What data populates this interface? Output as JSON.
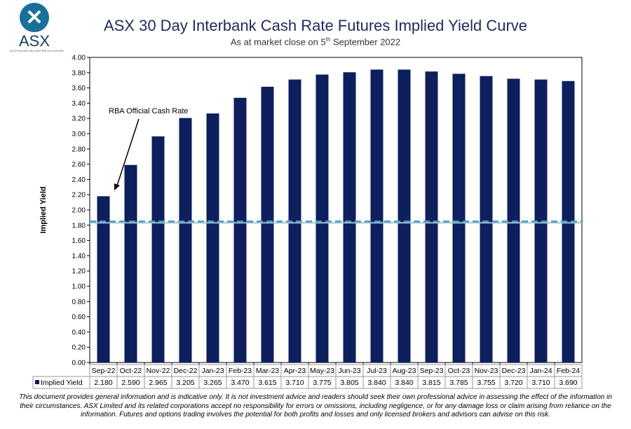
{
  "logo": {
    "name": "ASX",
    "sub": "AUSTRALIAN SECURITIES EXCHANGE"
  },
  "chart_data": {
    "type": "bar",
    "title": "ASX 30 Day Interbank Cash Rate Futures Implied Yield Curve",
    "subtitle_pre": "As at market close on 5",
    "subtitle_sup": "th",
    "subtitle_post": " September 2022",
    "ylabel": "Implied Yield",
    "ylim": [
      0,
      4
    ],
    "yticks": [
      "0.00",
      "0.20",
      "0.40",
      "0.60",
      "0.80",
      "1.00",
      "1.20",
      "1.40",
      "1.60",
      "1.80",
      "2.00",
      "2.20",
      "2.40",
      "2.60",
      "2.80",
      "3.00",
      "3.20",
      "3.40",
      "3.60",
      "3.80",
      "4.00"
    ],
    "categories": [
      "Sep-22",
      "Oct-22",
      "Nov-22",
      "Dec-22",
      "Jan-23",
      "Feb-23",
      "Mar-23",
      "Apr-23",
      "May-23",
      "Jun-23",
      "Jul-23",
      "Aug-23",
      "Sep-23",
      "Oct-23",
      "Nov-23",
      "Dec-23",
      "Jan-24",
      "Feb-24"
    ],
    "series": [
      {
        "name": "Implied Yield",
        "color": "#0d1f5c",
        "values_text": [
          "2.180",
          "2.590",
          "2.965",
          "3.205",
          "3.265",
          "3.470",
          "3.615",
          "3.710",
          "3.775",
          "3.805",
          "3.840",
          "3.840",
          "3.815",
          "3.785",
          "3.755",
          "3.720",
          "3.710",
          "3.690"
        ],
        "values": [
          2.18,
          2.59,
          2.965,
          3.205,
          3.265,
          3.47,
          3.615,
          3.71,
          3.775,
          3.805,
          3.84,
          3.84,
          3.815,
          3.785,
          3.755,
          3.72,
          3.71,
          3.69
        ]
      }
    ],
    "reference_line": {
      "value": 1.85,
      "color": "#2aa7e0"
    },
    "annotation": "RBA Official Cash Rate"
  },
  "disclaimer": "This document provides general information and is indicative only. It is not investment advice and readers should seek their own professional advice in assessing the effect of the information in their circumstances. ASX Limited and its related corporations accept no responsibility for errors or omissions, including negligence, or for any damage loss or claim arising from reliance on the information. Futures and options trading involves the potential for both profits and losses and only licensed brokers and advisors can advise on this risk."
}
